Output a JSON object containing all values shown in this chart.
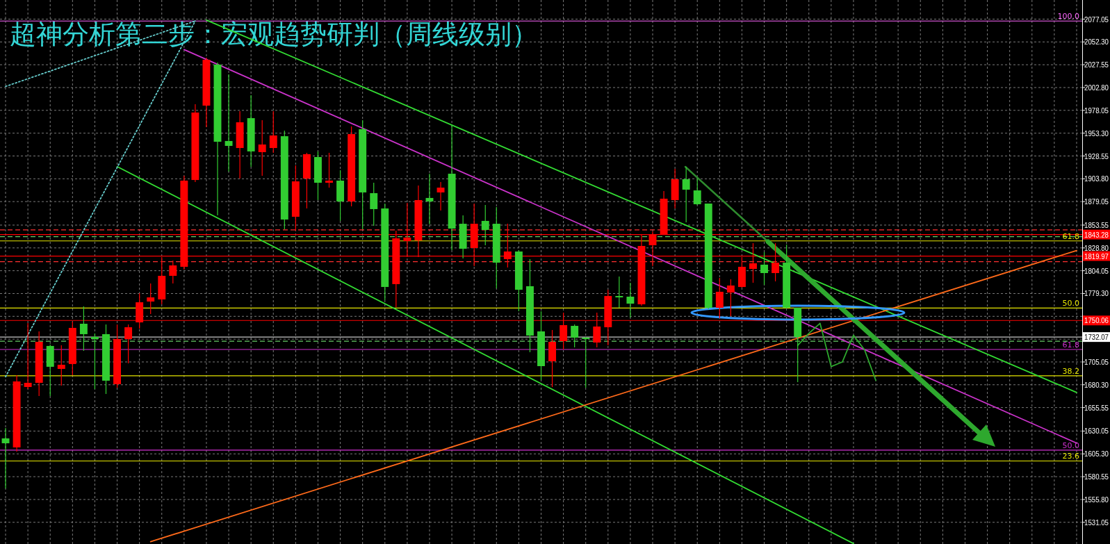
{
  "chart_data": {
    "type": "candlestick",
    "title": "超神分析第二步：宏观趋势研判（周线级别）",
    "categories": [
      null,
      null,
      null,
      null,
      null,
      null,
      null,
      null,
      null,
      null,
      null,
      null,
      null,
      null,
      null,
      null,
      null,
      null,
      null,
      null,
      null,
      null,
      null,
      null,
      null,
      null,
      null,
      null,
      null,
      null,
      null,
      null,
      null,
      null,
      null,
      null,
      null,
      null,
      null,
      null,
      null,
      null,
      null,
      null,
      null,
      null,
      null,
      null,
      null,
      null,
      null,
      null,
      null,
      null,
      null,
      null,
      null,
      null,
      null,
      null,
      null,
      null,
      null,
      null,
      null,
      null,
      null,
      null,
      null,
      null,
      null,
      null,
      null,
      null,
      null,
      null,
      null,
      null,
      null,
      null,
      null,
      null,
      null,
      null,
      null,
      null,
      null,
      null,
      null,
      null,
      null,
      null,
      null,
      null,
      null,
      null,
      null
    ],
    "ohlc": [
      [
        1622.1,
        1633.4,
        1567.8,
        1616.8
      ],
      [
        1612.3,
        1690.7,
        1607.8,
        1683.9
      ],
      [
        1677.9,
        1747.2,
        1675.6,
        1682.4
      ],
      [
        1682.4,
        1738.2,
        1668.1,
        1726.9
      ],
      [
        1722.4,
        1723.9,
        1668.1,
        1699.8
      ],
      [
        1697.5,
        1723.1,
        1679.4,
        1702.0
      ],
      [
        1702.8,
        1748.7,
        1690.7,
        1742.0
      ],
      [
        1746.5,
        1765.3,
        1717.1,
        1735.2
      ],
      [
        1732.2,
        1735.9,
        1675.6,
        1729.9
      ],
      [
        1735.2,
        1745.7,
        1670.3,
        1684.7
      ],
      [
        1680.9,
        1745.7,
        1677.1,
        1729.9
      ],
      [
        1729.9,
        1745.7,
        1703.5,
        1742.7
      ],
      [
        1748.0,
        1779.7,
        1741.2,
        1769.8
      ],
      [
        1770.6,
        1790.2,
        1757.0,
        1775.1
      ],
      [
        1772.9,
        1818.9,
        1767.6,
        1798.5
      ],
      [
        1798.5,
        1815.1,
        1790.2,
        1809.8
      ],
      [
        1808.3,
        1907.1,
        1805.3,
        1901.8
      ],
      [
        1902.5,
        1984.7,
        1900.3,
        1975.7
      ],
      [
        1983.2,
        2035.2,
        1959.8,
        2033.0
      ],
      [
        2027.7,
        2030.0,
        1864.1,
        1944.0
      ],
      [
        1944.8,
        2017.1,
        1911.6,
        1939.5
      ],
      [
        1937.2,
        1977.2,
        1904.0,
        1965.1
      ],
      [
        1969.6,
        1994.5,
        1916.9,
        1933.5
      ],
      [
        1932.7,
        1967.4,
        1907.1,
        1941.0
      ],
      [
        1937.2,
        1977.2,
        1932.0,
        1950.8
      ],
      [
        1950.0,
        1956.1,
        1849.0,
        1859.6
      ],
      [
        1862.6,
        1918.4,
        1847.5,
        1901.0
      ],
      [
        1904.0,
        1932.0,
        1871.6,
        1930.5
      ],
      [
        1927.4,
        1933.5,
        1880.7,
        1899.5
      ],
      [
        1899.5,
        1932.0,
        1894.2,
        1901.8
      ],
      [
        1901.8,
        1913.1,
        1858.1,
        1879.2
      ],
      [
        1879.2,
        1960.6,
        1873.9,
        1952.3
      ],
      [
        1957.6,
        1967.4,
        1849.0,
        1889.0
      ],
      [
        1888.2,
        1899.5,
        1852.8,
        1870.9
      ],
      [
        1871.6,
        1876.9,
        1772.1,
        1786.4
      ],
      [
        1789.5,
        1847.5,
        1764.6,
        1839.2
      ],
      [
        1836.2,
        1877.7,
        1818.9,
        1840.0
      ],
      [
        1836.9,
        1896.5,
        1818.9,
        1880.7
      ],
      [
        1883.0,
        1909.3,
        1854.3,
        1879.2
      ],
      [
        1889.0,
        1900.3,
        1869.4,
        1894.2
      ],
      [
        1909.3,
        1962.1,
        1826.4,
        1849.8
      ],
      [
        1855.0,
        1864.1,
        1817.4,
        1827.9
      ],
      [
        1828.7,
        1876.9,
        1809.0,
        1855.0
      ],
      [
        1858.1,
        1875.4,
        1831.7,
        1848.3
      ],
      [
        1855.0,
        1873.1,
        1784.9,
        1812.8
      ],
      [
        1816.6,
        1855.0,
        1807.5,
        1824.9
      ],
      [
        1824.9,
        1826.4,
        1760.0,
        1783.4
      ],
      [
        1787.2,
        1816.6,
        1715.6,
        1733.7
      ],
      [
        1738.2,
        1760.0,
        1685.4,
        1700.5
      ],
      [
        1705.8,
        1739.7,
        1677.9,
        1726.9
      ],
      [
        1727.6,
        1758.5,
        1718.6,
        1745.0
      ],
      [
        1744.2,
        1745.7,
        1720.8,
        1731.4
      ],
      [
        1731.4,
        1732.2,
        1677.1,
        1729.9
      ],
      [
        1726.1,
        1758.5,
        1720.8,
        1743.5
      ],
      [
        1742.7,
        1783.4,
        1723.1,
        1776.6
      ],
      [
        1776.6,
        1797.8,
        1763.8,
        1775.1
      ],
      [
        1775.9,
        1791.0,
        1753.3,
        1768.3
      ],
      [
        1767.6,
        1843.7,
        1766.1,
        1830.9
      ],
      [
        1831.7,
        1846.8,
        1809.0,
        1843.7
      ],
      [
        1843.7,
        1890.5,
        1843.0,
        1882.2
      ],
      [
        1880.7,
        1914.6,
        1871.6,
        1903.3
      ],
      [
        1903.3,
        1916.9,
        1856.6,
        1892.0
      ],
      [
        1891.2,
        1904.0,
        1875.4,
        1876.2
      ],
      [
        1876.9,
        1876.9,
        1762.3,
        1763.8
      ],
      [
        1763.8,
        1796.3,
        1752.5,
        1781.2
      ],
      [
        1780.4,
        1794.8,
        1754.8,
        1788.0
      ],
      [
        1786.4,
        1818.9,
        1785.7,
        1808.3
      ],
      [
        1806.0,
        1833.9,
        1791.0,
        1812.1
      ],
      [
        1810.6,
        1824.2,
        1788.7,
        1801.5
      ],
      [
        1801.5,
        1833.9,
        1792.5,
        1812.8
      ],
      [
        1812.8,
        1832.4,
        1763.1,
        1763.8
      ],
      [
        1763.8,
        1763.8,
        1683.2,
        1732.07
      ],
      null,
      null,
      null,
      null,
      null,
      null,
      null,
      null,
      null,
      null,
      null,
      null,
      null,
      null,
      null,
      null,
      null,
      null,
      null,
      null,
      null,
      null,
      null,
      null,
      null
    ],
    "colors": [
      "#32cd32",
      "#ff0000",
      "#ff0000",
      "#ff0000",
      "#32cd32",
      "#ff0000",
      "#ff0000",
      "#32cd32",
      "#32cd32",
      "#32cd32",
      "#ff0000",
      "#ff0000",
      "#ff0000",
      "#ff0000",
      "#ff0000",
      "#ff0000",
      "#ff0000",
      "#ff0000",
      "#ff0000",
      "#32cd32",
      "#32cd32",
      "#ff0000",
      "#32cd32",
      "#ff0000",
      "#ff0000",
      "#32cd32",
      "#ff0000",
      "#ff0000",
      "#32cd32",
      "#ff0000",
      "#32cd32",
      "#ff0000",
      "#32cd32",
      "#32cd32",
      "#32cd32",
      "#ff0000",
      "#ff0000",
      "#ff0000",
      "#32cd32",
      "#ff0000",
      "#32cd32",
      "#32cd32",
      "#ff0000",
      "#32cd32",
      "#32cd32",
      "#ff0000",
      "#32cd32",
      "#32cd32",
      "#32cd32",
      "#ff0000",
      "#ff0000",
      "#32cd32",
      "#32cd32",
      "#ff0000",
      "#ff0000",
      "#32cd32",
      "#32cd32",
      "#ff0000",
      "#ff0000",
      "#ff0000",
      "#ff0000",
      "#32cd32",
      "#32cd32",
      "#32cd32",
      "#ff0000",
      "#ff0000",
      "#ff0000",
      "#ff0000",
      "#32cd32",
      "#ff0000",
      "#32cd32",
      "#32cd32",
      null,
      null,
      null,
      null,
      null,
      null,
      null,
      null,
      null,
      null,
      null,
      null,
      null,
      null,
      null,
      null,
      null,
      null,
      null,
      null,
      null,
      null,
      null,
      null,
      null
    ],
    "series": [
      {
        "type": "line",
        "color": "#33dd33",
        "values": [
          null,
          null,
          null,
          null,
          null,
          null,
          null,
          null,
          null,
          null,
          null,
          null,
          null,
          null,
          null,
          null,
          null,
          null,
          2076,
          null,
          null,
          null,
          null,
          null,
          null,
          null,
          null,
          null,
          null,
          null,
          null,
          null,
          null,
          null,
          null,
          null,
          null,
          null,
          null,
          null,
          null,
          null,
          null,
          null,
          null,
          null,
          null,
          null,
          null,
          null,
          null,
          null,
          null,
          null,
          null,
          null,
          null,
          null,
          null,
          null,
          null,
          null,
          null,
          null,
          null,
          null,
          null,
          null,
          null,
          null,
          null,
          null,
          null,
          null,
          null,
          null,
          null,
          null,
          null,
          null,
          null,
          null,
          null,
          null,
          null,
          null,
          null,
          null,
          null,
          null,
          null,
          null,
          null,
          null,
          null,
          null,
          1672
        ]
      },
      {
        "type": "line",
        "color": "#33dd33",
        "values": [
          null,
          null,
          null,
          null,
          null,
          null,
          null,
          null,
          null,
          null,
          1917,
          null,
          null,
          null,
          null,
          null,
          null,
          null,
          null,
          null,
          null,
          null,
          null,
          null,
          null,
          null,
          null,
          null,
          null,
          null,
          null,
          null,
          null,
          null,
          null,
          null,
          null,
          null,
          null,
          null,
          null,
          null,
          null,
          null,
          null,
          null,
          null,
          null,
          null,
          null,
          null,
          null,
          null,
          null,
          null,
          null,
          null,
          null,
          null,
          null,
          null,
          null,
          null,
          null,
          null,
          null,
          null,
          null,
          null,
          null,
          null,
          null,
          null,
          null,
          null,
          null,
          1508,
          null,
          null,
          null,
          null,
          null,
          null,
          null,
          null,
          null,
          null,
          null,
          null,
          null,
          null,
          null,
          null,
          null,
          null,
          null,
          null
        ]
      },
      {
        "type": "line",
        "color": "#cc33cc",
        "values": [
          null,
          null,
          null,
          null,
          null,
          null,
          null,
          null,
          null,
          null,
          null,
          null,
          null,
          null,
          null,
          null,
          2044,
          null,
          null,
          null,
          null,
          null,
          null,
          null,
          null,
          null,
          null,
          null,
          null,
          null,
          null,
          null,
          null,
          null,
          null,
          null,
          null,
          null,
          null,
          null,
          null,
          null,
          null,
          null,
          null,
          null,
          null,
          null,
          null,
          null,
          null,
          null,
          null,
          null,
          null,
          null,
          null,
          null,
          null,
          null,
          null,
          null,
          null,
          null,
          null,
          null,
          null,
          null,
          null,
          null,
          null,
          null,
          null,
          null,
          null,
          null,
          null,
          null,
          null,
          null,
          null,
          null,
          null,
          null,
          null,
          null,
          null,
          null,
          null,
          null,
          null,
          null,
          null,
          null,
          null,
          null,
          1617
        ]
      },
      {
        "type": "line",
        "color": "#ff6a1a",
        "values": [
          null,
          null,
          null,
          null,
          null,
          null,
          null,
          null,
          null,
          null,
          null,
          null,
          null,
          1510,
          null,
          null,
          null,
          null,
          null,
          null,
          null,
          null,
          null,
          null,
          null,
          null,
          null,
          null,
          null,
          null,
          null,
          null,
          null,
          null,
          null,
          null,
          null,
          null,
          null,
          null,
          null,
          null,
          null,
          null,
          null,
          null,
          null,
          null,
          null,
          null,
          null,
          null,
          null,
          null,
          null,
          null,
          null,
          null,
          null,
          null,
          null,
          null,
          null,
          null,
          null,
          null,
          null,
          null,
          null,
          null,
          null,
          null,
          null,
          null,
          null,
          null,
          null,
          null,
          null,
          null,
          null,
          null,
          null,
          null,
          null,
          null,
          null,
          null,
          null,
          null,
          null,
          null,
          null,
          null,
          null,
          null,
          1826
        ]
      },
      {
        "type": "line",
        "color": "#66cccc",
        "line_style": "dotted",
        "values": [
          2004,
          null,
          null,
          null,
          null,
          null,
          null,
          null,
          null,
          null,
          null,
          null,
          null,
          null,
          null,
          null,
          null,
          2075,
          null,
          null,
          null,
          null,
          null,
          null,
          null,
          null,
          null,
          null,
          null,
          null,
          null,
          null,
          null,
          null,
          null,
          null,
          null,
          null,
          null,
          null,
          null,
          null,
          null,
          null,
          null,
          null,
          null,
          null,
          null,
          null,
          null,
          null,
          null,
          null,
          null,
          null,
          null,
          null,
          null,
          null,
          null,
          null,
          null,
          null,
          null,
          null,
          null,
          null,
          null,
          null,
          null,
          null,
          null,
          null,
          null,
          null,
          null,
          null,
          null,
          null,
          null,
          null,
          null,
          null,
          null,
          null,
          null,
          null,
          null,
          null,
          null,
          null,
          null,
          null,
          null,
          null,
          null
        ]
      },
      {
        "type": "line",
        "color": "#2ea82e",
        "values": [
          null,
          null,
          null,
          null,
          null,
          null,
          null,
          null,
          null,
          null,
          null,
          null,
          null,
          null,
          null,
          null,
          null,
          null,
          null,
          null,
          null,
          null,
          null,
          null,
          null,
          null,
          null,
          null,
          null,
          null,
          null,
          null,
          null,
          null,
          null,
          null,
          null,
          null,
          null,
          null,
          null,
          null,
          null,
          null,
          null,
          null,
          null,
          null,
          null,
          null,
          null,
          null,
          null,
          null,
          null,
          null,
          null,
          null,
          null,
          null,
          null,
          null,
          null,
          null,
          null,
          null,
          null,
          null,
          null,
          null,
          null,
          1723,
          1736,
          1747,
          1700,
          1705,
          1734,
          1718,
          1685,
          null,
          null,
          null,
          null,
          null,
          null,
          null,
          null,
          null,
          null,
          null,
          null,
          null,
          null,
          null,
          null,
          null,
          null
        ]
      },
      {
        "type": "line",
        "color": "#66cccc",
        "line_style": "dotted",
        "values": [
          1689,
          null,
          null,
          null,
          null,
          null,
          null,
          null,
          null,
          null,
          null,
          null,
          null,
          null,
          null,
          null,
          null,
          2075,
          null,
          null,
          null,
          null,
          null,
          null,
          null,
          null,
          null,
          null,
          null,
          null,
          null,
          null,
          null,
          null,
          null,
          null,
          null,
          null,
          null,
          null,
          null,
          null,
          null,
          null,
          null,
          null,
          null,
          null,
          null,
          null,
          null,
          null,
          null,
          null,
          null,
          null,
          null,
          null,
          null,
          null,
          null,
          null,
          null,
          null,
          null,
          null,
          null,
          null,
          null,
          null,
          null,
          null,
          null,
          null,
          null,
          null,
          null,
          null,
          null,
          null,
          null,
          null,
          null,
          null,
          null,
          null,
          null,
          null,
          null,
          null,
          null,
          null,
          null,
          null,
          null,
          null,
          null
        ]
      }
    ],
    "ylim": [
      1507.5,
      2097.8
    ],
    "yticks": [
      2077.05,
      {
        "value": 2052.3,
        "label": "2052.30"
      },
      2027.55,
      {
        "value": 2002.8,
        "label": "2002.80"
      },
      1978.05,
      {
        "value": 1953.3,
        "label": "1953.30"
      },
      1928.55,
      {
        "value": 1903.8,
        "label": "1903.80"
      },
      1879.05,
      1853.55,
      {
        "value": 1828.8,
        "label": "1828.80"
      },
      1804.05,
      {
        "value": 1779.3,
        "label": "1779.30"
      },
      {
        "value": 1754.55,
        "label": null
      },
      {
        "value": 1729.8,
        "label": null
      },
      1705.05,
      {
        "value": 1680.3,
        "label": "1680.30"
      },
      1655.55,
      1630.05,
      {
        "value": 1605.3,
        "label": "1605.30"
      },
      1580.55,
      {
        "value": 1555.8,
        "label": "1555.80"
      },
      1531.05
    ],
    "ref_lines": [
      {
        "axis": "y",
        "value": 2075,
        "color": "#ff66ff"
      },
      {
        "axis": "y",
        "value": 1848.3,
        "color": "#ff3030",
        "line_style": "dashed"
      },
      {
        "axis": "y",
        "value": 1843.28,
        "label": "1843.28",
        "color": "#ff0000"
      },
      {
        "axis": "y",
        "value": 1841,
        "color": "#66cc66",
        "line_style": "dashed"
      },
      {
        "axis": "y",
        "value": 1836.4,
        "color": "#e6e600"
      },
      {
        "axis": "y",
        "value": 1819.97,
        "label": "1819.97",
        "color": "#ff0000"
      },
      {
        "axis": "y",
        "value": 1813.8,
        "color": "#ff3030",
        "line_style": "dashed"
      },
      {
        "axis": "y",
        "value": 1763.6,
        "color": "#e6e600"
      },
      {
        "axis": "y",
        "value": 1750.06,
        "label": "1750.06",
        "color": "#ff0000"
      },
      {
        "axis": "y",
        "value": 1732.07,
        "label": "1732.07",
        "color": "#c8c8c8"
      },
      {
        "axis": "y",
        "value": 1727.5,
        "color": "#66cc66",
        "line_style": "dashed"
      },
      {
        "axis": "y",
        "value": 1718.6,
        "color": "#d030d0"
      },
      {
        "axis": "y",
        "value": 1690,
        "color": "#e6e600"
      },
      {
        "axis": "y",
        "value": 1609.3,
        "color": "#d030d0"
      },
      {
        "axis": "y",
        "value": 1597.6,
        "color": "#e6e600"
      }
    ],
    "annotations": [
      {
        "text": "100.0",
        "y": 2075
      },
      {
        "text": "61.8",
        "y": 1836.4
      },
      {
        "text": "50.0",
        "y": 1763.6
      },
      {
        "text": "61.8",
        "y": 1718.6
      },
      {
        "text": "38.2",
        "y": 1690
      },
      {
        "text": "50.0",
        "y": 1609.3
      },
      {
        "text": "23.6",
        "y": 1597.6
      }
    ],
    "grid": true,
    "tick_labels": "y"
  }
}
